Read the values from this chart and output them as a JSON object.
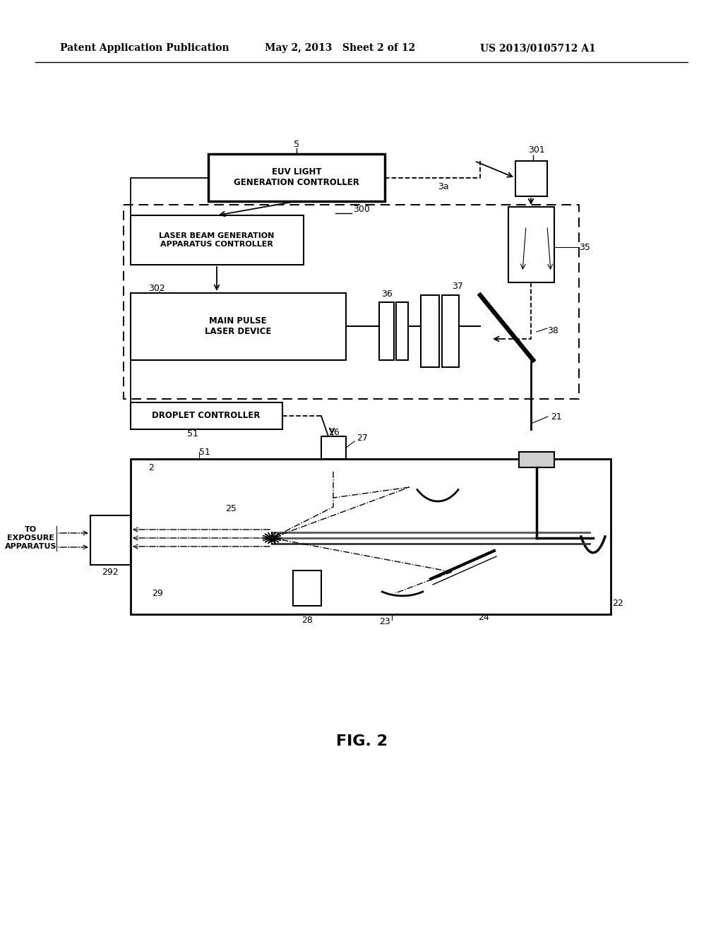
{
  "background_color": "#ffffff",
  "header_left": "Patent Application Publication",
  "header_mid": "May 2, 2013   Sheet 2 of 12",
  "header_right": "US 2013/0105712 A1",
  "footer_label": "FIG. 2"
}
